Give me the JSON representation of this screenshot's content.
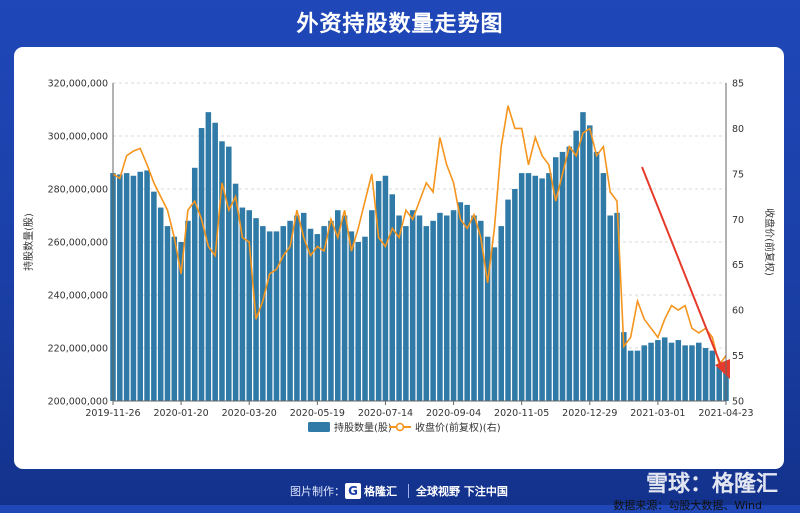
{
  "title": "外资持股数量走势图",
  "chart_data": {
    "type": "bar+line",
    "title": "外资持股数量走势图",
    "ylabel": "持股数量(股)",
    "ylabel_right": "收盘价(前复权)",
    "ylim": [
      200000000,
      320000000
    ],
    "ylim_right": [
      50,
      85
    ],
    "grid": true,
    "legend_position": "bottom-center",
    "y_ticks": [
      "320,000,000",
      "300,000,000",
      "280,000,000",
      "260,000,000",
      "240,000,000",
      "220,000,000",
      "200,000,000"
    ],
    "y_right_ticks": [
      "85",
      "80",
      "75",
      "70",
      "65",
      "60",
      "55",
      "50"
    ],
    "x_ticks": [
      "2019-11-26",
      "2020-01-20",
      "2020-03-20",
      "2020-05-19",
      "2020-07-14",
      "2020-09-04",
      "2020-11-05",
      "2020-12-29",
      "2021-03-01",
      "2021-04-23"
    ],
    "x_tick_positions": [
      0,
      1,
      2,
      3,
      4,
      5,
      6,
      7,
      8,
      9
    ],
    "series": [
      {
        "name": "持股数量(股)",
        "type": "bar",
        "color": "#2f7aa6",
        "x": [
          0,
          0.1,
          0.2,
          0.3,
          0.4,
          0.5,
          0.6,
          0.7,
          0.8,
          0.9,
          1,
          1.1,
          1.2,
          1.3,
          1.4,
          1.5,
          1.6,
          1.7,
          1.8,
          1.9,
          2,
          2.1,
          2.2,
          2.3,
          2.4,
          2.5,
          2.6,
          2.7,
          2.8,
          2.9,
          3,
          3.1,
          3.2,
          3.3,
          3.4,
          3.5,
          3.6,
          3.7,
          3.8,
          3.9,
          4,
          4.1,
          4.2,
          4.3,
          4.4,
          4.5,
          4.6,
          4.7,
          4.8,
          4.9,
          5,
          5.1,
          5.2,
          5.3,
          5.4,
          5.5,
          5.6,
          5.7,
          5.8,
          5.9,
          6,
          6.1,
          6.2,
          6.3,
          6.4,
          6.5,
          6.6,
          6.7,
          6.8,
          6.9,
          7,
          7.1,
          7.2,
          7.3,
          7.4,
          7.5,
          7.6,
          7.7,
          7.8,
          7.9,
          8,
          8.1,
          8.2,
          8.3,
          8.4,
          8.5,
          8.6,
          8.7,
          8.8,
          8.9,
          9
        ],
        "values": [
          286000000,
          285500000,
          286000000,
          285000000,
          286500000,
          287000000,
          279000000,
          273000000,
          266000000,
          262000000,
          260000000,
          268000000,
          288000000,
          303000000,
          309000000,
          305000000,
          298000000,
          296000000,
          282000000,
          273000000,
          272000000,
          269000000,
          266000000,
          264000000,
          264000000,
          266000000,
          268000000,
          270000000,
          271000000,
          265000000,
          263000000,
          266000000,
          268000000,
          272000000,
          270000000,
          264000000,
          260000000,
          262000000,
          272000000,
          283000000,
          285000000,
          278000000,
          270000000,
          266000000,
          272000000,
          270000000,
          266000000,
          268000000,
          271000000,
          270000000,
          272000000,
          275000000,
          274000000,
          270000000,
          268000000,
          262000000,
          258000000,
          266000000,
          276000000,
          280000000,
          286000000,
          286000000,
          285000000,
          284000000,
          286000000,
          292000000,
          294000000,
          296000000,
          302000000,
          309000000,
          304000000,
          294000000,
          286000000,
          270000000,
          271000000,
          226000000,
          219000000,
          219000000,
          221000000,
          222000000,
          223000000,
          224000000,
          222000000,
          223000000,
          221000000,
          221000000,
          222000000,
          220000000,
          219000000,
          214000000,
          212000000
        ]
      },
      {
        "name": "收盘价(前复权)(右)",
        "type": "line",
        "color": "#f5951e",
        "x": [
          0,
          0.1,
          0.2,
          0.3,
          0.4,
          0.5,
          0.6,
          0.7,
          0.8,
          0.9,
          1,
          1.1,
          1.2,
          1.3,
          1.4,
          1.5,
          1.6,
          1.7,
          1.8,
          1.9,
          2,
          2.1,
          2.2,
          2.3,
          2.4,
          2.5,
          2.6,
          2.7,
          2.8,
          2.9,
          3,
          3.1,
          3.2,
          3.3,
          3.4,
          3.5,
          3.6,
          3.7,
          3.8,
          3.9,
          4,
          4.1,
          4.2,
          4.3,
          4.4,
          4.5,
          4.6,
          4.7,
          4.8,
          4.9,
          5,
          5.1,
          5.2,
          5.3,
          5.4,
          5.5,
          5.6,
          5.7,
          5.8,
          5.9,
          6,
          6.1,
          6.2,
          6.3,
          6.4,
          6.5,
          6.6,
          6.7,
          6.8,
          6.9,
          7,
          7.1,
          7.2,
          7.3,
          7.4,
          7.5,
          7.6,
          7.7,
          7.8,
          7.9,
          8,
          8.1,
          8.2,
          8.3,
          8.4,
          8.5,
          8.6,
          8.7,
          8.8,
          8.9,
          9
        ],
        "values": [
          75,
          74.5,
          77,
          77.5,
          77.8,
          76,
          74,
          72.5,
          71,
          68,
          64,
          71,
          72,
          70,
          67,
          66,
          74,
          71,
          72.5,
          68,
          67.5,
          59,
          61,
          64,
          64.5,
          66,
          67,
          71,
          68,
          66,
          67,
          66.5,
          70,
          68,
          71,
          66.5,
          69,
          72,
          75,
          68,
          67,
          69,
          68,
          71,
          70,
          72,
          74,
          73,
          79,
          76,
          74,
          70,
          69,
          70.5,
          68,
          63,
          69,
          78,
          82.5,
          80,
          80,
          76,
          79,
          77,
          76,
          72,
          75,
          78,
          77,
          79.5,
          80,
          77,
          78,
          73,
          72,
          56,
          57,
          61,
          59,
          58,
          57,
          59,
          60.5,
          60,
          60.5,
          58,
          57.5,
          58,
          57,
          54,
          55
        ]
      }
    ]
  },
  "source_text": "数据来源：勾股大数据、Wind",
  "footer": {
    "credit": "图片制作：",
    "logo_mark": "G",
    "logo_text": "格隆汇",
    "slogan": "全球视野 下注中国"
  },
  "watermark": "雪球：格隆汇"
}
